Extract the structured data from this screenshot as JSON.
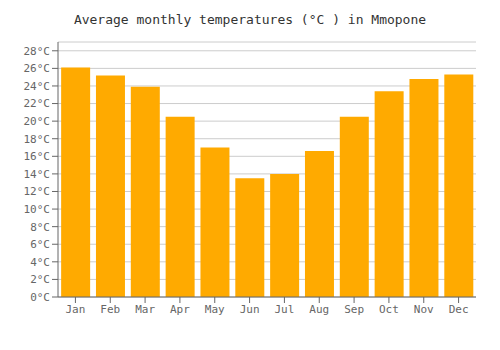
{
  "chart_data": {
    "type": "bar",
    "title": "Average monthly temperatures (°C ) in Mmopone",
    "categories": [
      "Jan",
      "Feb",
      "Mar",
      "Apr",
      "May",
      "Jun",
      "Jul",
      "Aug",
      "Sep",
      "Oct",
      "Nov",
      "Dec"
    ],
    "values": [
      26.1,
      25.2,
      23.9,
      20.5,
      17.0,
      13.5,
      14.0,
      16.6,
      20.5,
      23.4,
      24.8,
      25.3
    ],
    "color": "#FFAA00",
    "ylim": [
      0,
      29
    ],
    "yticks": [
      {
        "value": 0,
        "label": "0°C"
      },
      {
        "value": 2,
        "label": "2°C"
      },
      {
        "value": 4,
        "label": "4°C"
      },
      {
        "value": 6,
        "label": "6°C"
      },
      {
        "value": 8,
        "label": "8°C"
      },
      {
        "value": 10,
        "label": "10°C"
      },
      {
        "value": 12,
        "label": "12°C"
      },
      {
        "value": 14,
        "label": "14°C"
      },
      {
        "value": 16,
        "label": "16°C"
      },
      {
        "value": 18,
        "label": "18°C"
      },
      {
        "value": 20,
        "label": "20°C"
      },
      {
        "value": 22,
        "label": "22°C"
      },
      {
        "value": 24,
        "label": "24°C"
      },
      {
        "value": 26,
        "label": "26°C"
      },
      {
        "value": 28,
        "label": "28°C"
      }
    ],
    "grid": true
  }
}
